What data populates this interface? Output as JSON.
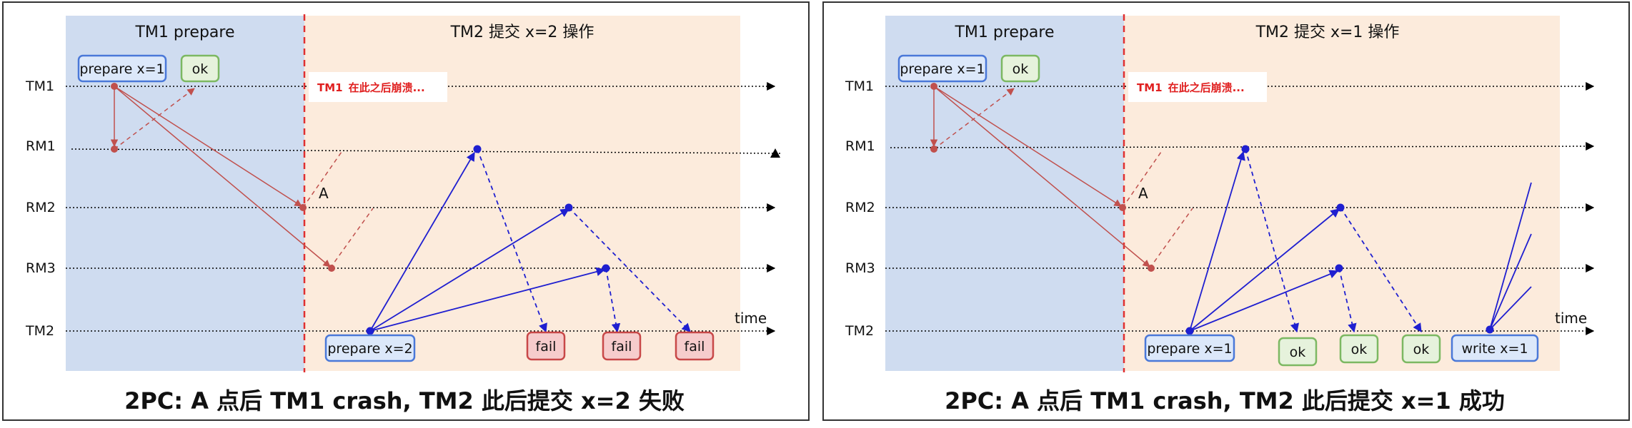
{
  "panels": [
    {
      "tm1_phase": "TM1 prepare",
      "tm2_phase": "TM2 提交 x=2 操作",
      "rows": [
        "TM1",
        "RM1",
        "RM2",
        "RM3",
        "TM2"
      ],
      "time_label": "time",
      "crash_note_actor": "TM1",
      "crash_note_text": "在此之后崩溃...",
      "point_label": "A",
      "tm1_boxes": [
        "prepare x=1",
        "ok"
      ],
      "tm2_boxes": [
        "prepare x=2",
        "fail",
        "fail",
        "fail"
      ],
      "caption": "2PC: A 点后 TM1 crash, TM2 此后提交 x=2 失败"
    },
    {
      "tm1_phase": "TM1 prepare",
      "tm2_phase": "TM2 提交 x=1 操作",
      "rows": [
        "TM1",
        "RM1",
        "RM2",
        "RM3",
        "TM2"
      ],
      "time_label": "time",
      "crash_note_actor": "TM1",
      "crash_note_text": "在此之后崩溃...",
      "point_label": "A",
      "tm1_boxes": [
        "prepare x=1",
        "ok"
      ],
      "tm2_boxes": [
        "prepare x=1",
        "ok",
        "ok",
        "ok",
        "write x=1"
      ],
      "caption": "2PC: A 点后 TM1 crash, TM2 此后提交 x=1 成功"
    }
  ],
  "colors": {
    "tm1_region": "#cfdcf0",
    "tm2_region": "#fcebdc",
    "crash_line": "#e03030",
    "red_arrow": "#c0504d",
    "blue_arrow": "#1f1fd0",
    "blue_box_border": "#4a78d8",
    "blue_box_fill": "#dce8fa",
    "green_box_border": "#7cb862",
    "green_box_fill": "#e6f2dc",
    "red_box_border": "#c84848",
    "red_box_fill": "#f6cccc"
  }
}
